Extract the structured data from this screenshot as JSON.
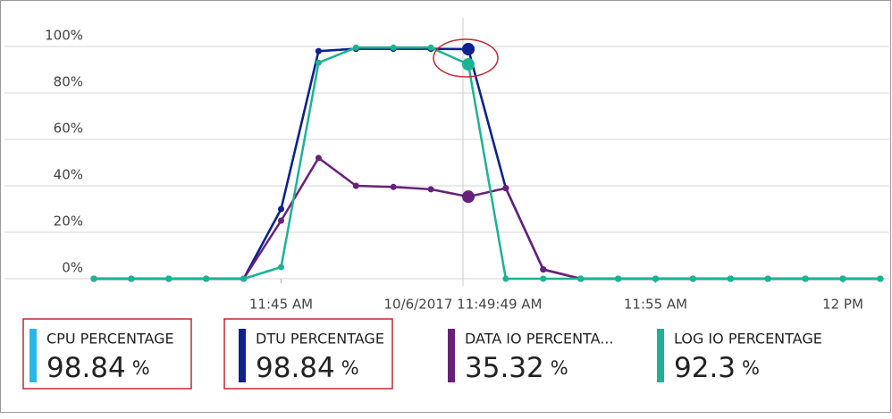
{
  "chart_data": {
    "type": "line",
    "categories": [
      null,
      null,
      null,
      null,
      null,
      "11:45 AM",
      null,
      null,
      null,
      null,
      null,
      null,
      null,
      null,
      null,
      "11:55 AM",
      null,
      null,
      null,
      null,
      "12 PM",
      null
    ],
    "cursor_label": "10/6/2017 11:49:49 AM",
    "ylim": [
      0,
      100
    ],
    "yticks": [
      {
        "value": 0,
        "label": "0%"
      },
      {
        "value": 20,
        "label": "20%"
      },
      {
        "value": 40,
        "label": "40%"
      },
      {
        "value": 60,
        "label": "60%"
      },
      {
        "value": 80,
        "label": "80%"
      },
      {
        "value": 100,
        "label": "100%"
      }
    ],
    "grid": true,
    "series": [
      {
        "name": "CPU PERCENTAGE",
        "color": "#29b6e8",
        "values": [
          0,
          0,
          0,
          0,
          0,
          30,
          98,
          99,
          99,
          99,
          98.84,
          39,
          4,
          0,
          0,
          0,
          0,
          0,
          0,
          0,
          0,
          0
        ]
      },
      {
        "name": "DTU PERCENTAGE",
        "color": "#10208c",
        "values": [
          0,
          0,
          0,
          0,
          0,
          30,
          98,
          99,
          99,
          99,
          98.84,
          39,
          4,
          0,
          0,
          0,
          0,
          0,
          0,
          0,
          0,
          0
        ]
      },
      {
        "name": "DATA IO PERCENTA...",
        "color": "#68217a",
        "values": [
          0,
          0,
          0,
          0,
          0,
          25,
          52,
          40,
          39.5,
          38.5,
          35.32,
          39,
          4,
          0,
          0,
          0,
          0,
          0,
          0,
          0,
          0,
          0
        ]
      },
      {
        "name": "LOG IO PERCENTAGE",
        "color": "#1bb394",
        "values": [
          0,
          0,
          0,
          0,
          0,
          5,
          93,
          99.5,
          99.5,
          99.5,
          92.3,
          0,
          0,
          0,
          0,
          0,
          0,
          0,
          0,
          0,
          0,
          0
        ]
      }
    ],
    "tiles": [
      {
        "value": 98.84,
        "unit": "%"
      },
      {
        "value": 98.84,
        "unit": "%"
      },
      {
        "value": 35.32,
        "unit": "%"
      },
      {
        "value": 92.3,
        "unit": "%"
      }
    ]
  }
}
